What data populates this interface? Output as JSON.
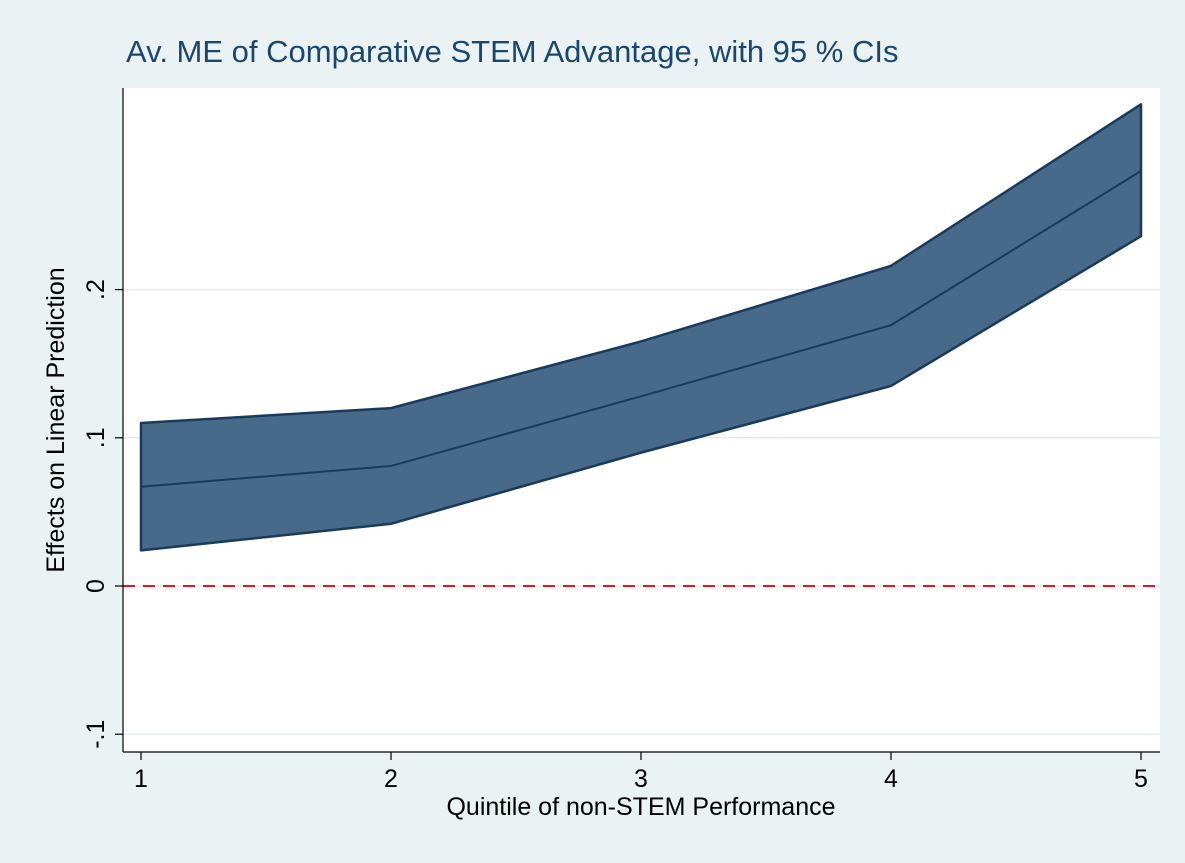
{
  "chart_data": {
    "type": "line",
    "title": "Av. ME of Comparative STEM Advantage, with 95 % CIs",
    "xlabel": "Quintile of non-STEM Performance",
    "ylabel": "Effects on Linear Prediction",
    "x": [
      1,
      2,
      3,
      4,
      5
    ],
    "values": [
      0.067,
      0.081,
      0.128,
      0.176,
      0.28
    ],
    "lower": [
      0.024,
      0.042,
      0.09,
      0.135,
      0.236
    ],
    "upper": [
      0.11,
      0.12,
      0.165,
      0.216,
      0.325
    ],
    "color": "#1a3a5c",
    "band_color": "#476a8a",
    "refline": 0,
    "refline_color": "#e8141b",
    "xlim": [
      0.928,
      5.076
    ],
    "ylim": [
      -0.112,
      0.336
    ],
    "xticks": [
      1,
      2,
      3,
      4,
      5
    ],
    "yticks": [
      {
        "value": -0.1,
        "label": "-.1"
      },
      0,
      {
        "value": 0.1,
        "label": ".1"
      },
      {
        "value": 0.2,
        "label": ".2"
      }
    ],
    "grid": true
  }
}
